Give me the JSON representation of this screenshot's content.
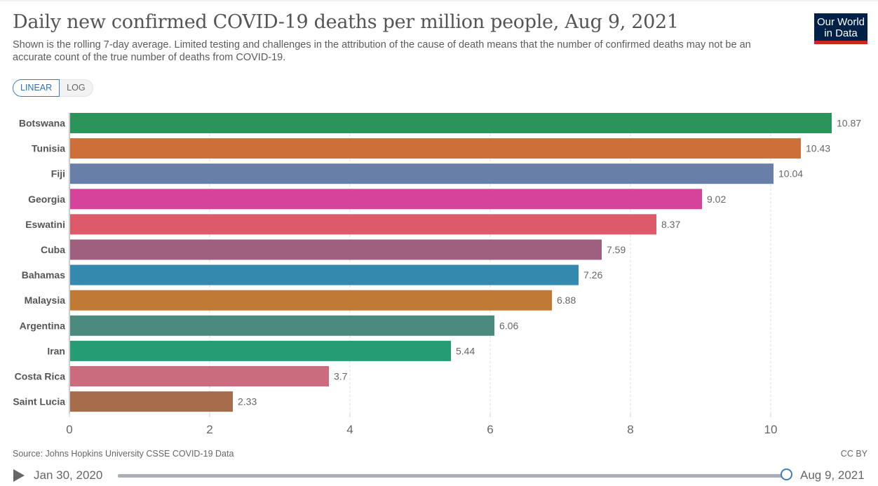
{
  "header": {
    "title": "Daily new confirmed COVID-19 deaths per million people, Aug 9, 2021",
    "subtitle": "Shown is the rolling 7-day average. Limited testing and challenges in the attribution of the cause of death means that the number of confirmed deaths may not be an accurate count of the true number of deaths from COVID-19.",
    "logo_line1": "Our World",
    "logo_line2": "in Data"
  },
  "scale_toggle": {
    "options": [
      "LINEAR",
      "LOG"
    ],
    "selected": "LINEAR"
  },
  "footer": {
    "source": "Source: Johns Hopkins University CSSE COVID-19 Data",
    "license": "CC BY"
  },
  "timeline": {
    "start_date": "Jan 30, 2020",
    "end_date": "Aug 9, 2021",
    "position_fraction": 1.0
  },
  "chart_data": {
    "type": "bar",
    "orientation": "horizontal",
    "title": "Daily new confirmed COVID-19 deaths per million people, Aug 9, 2021",
    "xlabel": "",
    "ylabel": "",
    "xlim": [
      0,
      11
    ],
    "xticks": [
      0,
      2,
      4,
      6,
      8,
      10
    ],
    "grid": "vertical dashed",
    "categories": [
      "Botswana",
      "Tunisia",
      "Fiji",
      "Georgia",
      "Eswatini",
      "Cuba",
      "Bahamas",
      "Malaysia",
      "Argentina",
      "Iran",
      "Costa Rica",
      "Saint Lucia"
    ],
    "values": [
      10.87,
      10.43,
      10.04,
      9.02,
      8.37,
      7.59,
      7.26,
      6.88,
      6.06,
      5.44,
      3.7,
      2.33
    ],
    "value_labels": [
      "10.87",
      "10.43",
      "10.04",
      "9.02",
      "8.37",
      "7.59",
      "7.26",
      "6.88",
      "6.06",
      "5.44",
      "3.7",
      "2.33"
    ],
    "colors": [
      "#2a945a",
      "#cc6f38",
      "#6880a8",
      "#d5449a",
      "#dd5a6a",
      "#9f6080",
      "#3389ae",
      "#c07a36",
      "#4c8a7e",
      "#259c74",
      "#cb6b7e",
      "#a76c4c"
    ]
  }
}
